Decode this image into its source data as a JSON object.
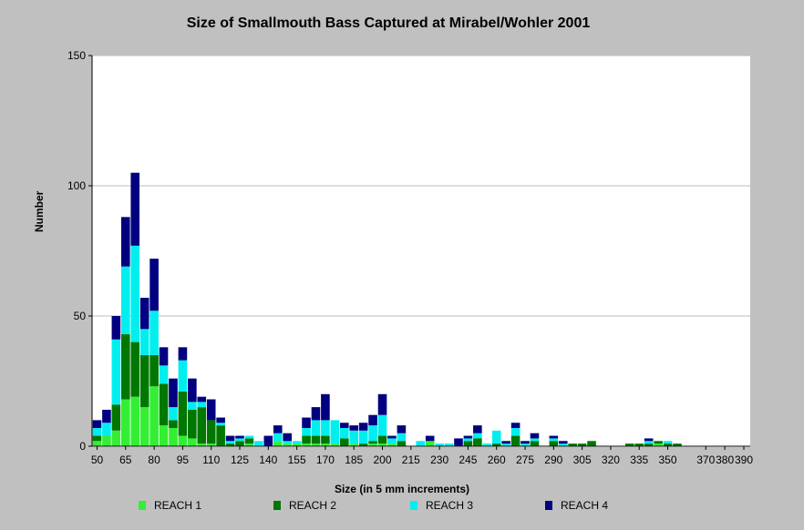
{
  "chart_data": {
    "type": "bar",
    "stacked": true,
    "title": "Size of Smallmouth Bass Captured at Mirabel/Wohler 2001",
    "xlabel": "Size (in 5 mm increments)",
    "ylabel": "Number",
    "ylim": [
      0,
      150
    ],
    "yticks": [
      0,
      50,
      100,
      150
    ],
    "xticks": [
      "50",
      "65",
      "80",
      "95",
      "110",
      "125",
      "140",
      "155",
      "170",
      "185",
      "200",
      "215",
      "230",
      "245",
      "260",
      "275",
      "290",
      "305",
      "320",
      "335",
      "350",
      "370",
      "380",
      "390"
    ],
    "categories": [
      50,
      55,
      60,
      65,
      70,
      75,
      80,
      85,
      90,
      95,
      100,
      105,
      110,
      115,
      120,
      125,
      130,
      135,
      140,
      145,
      150,
      155,
      160,
      165,
      170,
      175,
      180,
      185,
      190,
      195,
      200,
      205,
      210,
      215,
      220,
      225,
      230,
      235,
      240,
      245,
      250,
      255,
      260,
      265,
      270,
      275,
      280,
      285,
      290,
      295,
      300,
      305,
      310,
      315,
      320,
      325,
      330,
      335,
      340,
      345,
      350,
      355,
      360,
      365,
      370,
      375,
      380,
      385,
      390
    ],
    "grid": true,
    "legend_position": "bottom",
    "series": [
      {
        "name": "REACH 1",
        "color": "#33ee33",
        "values": [
          2,
          4,
          6,
          18,
          19,
          15,
          23,
          8,
          7,
          4,
          3,
          1,
          1,
          0,
          0,
          0,
          1,
          0,
          0,
          2,
          1,
          1,
          1,
          1,
          1,
          1,
          0,
          1,
          0,
          1,
          1,
          1,
          0,
          0,
          0,
          2,
          0,
          0,
          0,
          0,
          0,
          0,
          0,
          0,
          0,
          0,
          0,
          0,
          0,
          0,
          0,
          0,
          0,
          0,
          0,
          0,
          0,
          0,
          0,
          1,
          0,
          0,
          0,
          0,
          0,
          0,
          0,
          0,
          0
        ]
      },
      {
        "name": "REACH 2",
        "color": "#007700",
        "values": [
          2,
          0,
          10,
          25,
          21,
          20,
          12,
          16,
          3,
          17,
          11,
          14,
          9,
          8,
          1,
          2,
          2,
          0,
          0,
          0,
          0,
          0,
          3,
          3,
          3,
          0,
          3,
          0,
          1,
          1,
          3,
          0,
          2,
          0,
          0,
          0,
          0,
          0,
          0,
          2,
          3,
          0,
          1,
          0,
          4,
          0,
          2,
          0,
          2,
          0,
          1,
          1,
          2,
          0,
          0,
          0,
          1,
          1,
          1,
          1,
          1,
          1,
          0,
          0,
          0,
          0,
          0,
          0,
          0
        ]
      },
      {
        "name": "REACH 3",
        "color": "#00eeee",
        "values": [
          3,
          5,
          25,
          26,
          37,
          10,
          17,
          7,
          5,
          12,
          3,
          2,
          0,
          1,
          1,
          1,
          1,
          2,
          0,
          3,
          1,
          1,
          3,
          6,
          6,
          9,
          4,
          5,
          5,
          6,
          8,
          2,
          3,
          0,
          2,
          0,
          1,
          1,
          0,
          1,
          2,
          1,
          5,
          1,
          3,
          1,
          1,
          0,
          1,
          1,
          0,
          0,
          0,
          0,
          0,
          0,
          0,
          0,
          1,
          0,
          1,
          0,
          0,
          0,
          0,
          0,
          0,
          0,
          0
        ]
      },
      {
        "name": "REACH 4",
        "color": "#000080",
        "values": [
          3,
          5,
          9,
          19,
          28,
          12,
          20,
          7,
          11,
          5,
          9,
          2,
          8,
          2,
          2,
          1,
          0,
          0,
          4,
          3,
          3,
          0,
          4,
          5,
          10,
          0,
          2,
          2,
          3,
          4,
          8,
          1,
          3,
          0,
          0,
          2,
          0,
          0,
          3,
          1,
          3,
          0,
          0,
          1,
          2,
          1,
          2,
          0,
          1,
          1,
          0,
          0,
          0,
          0,
          0,
          0,
          0,
          0,
          1,
          0,
          0,
          0,
          0,
          0,
          0,
          0,
          0,
          0,
          0
        ]
      }
    ]
  }
}
